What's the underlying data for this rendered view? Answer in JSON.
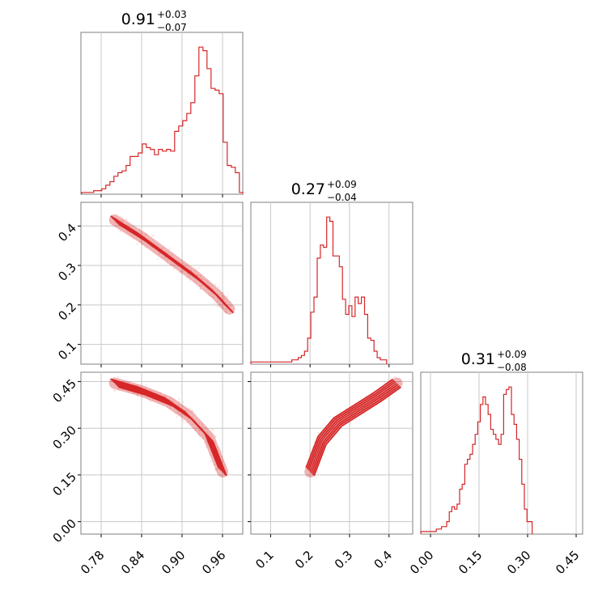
{
  "colors": {
    "series": "#d62728",
    "grid": "#c8c8c8",
    "frame": "#7f7f7f"
  },
  "chart_data": [
    {
      "type": "histogram",
      "panel": "1-1",
      "title": {
        "value": "0.91",
        "plus": "+0.03",
        "minus": "−0.07"
      },
      "xlim": [
        0.75,
        0.99
      ],
      "xticks": [
        "0.78",
        "0.84",
        "0.90",
        "0.96"
      ],
      "bins": {
        "start": 0.751,
        "width": 0.006
      },
      "counts": [
        1,
        1,
        1,
        2,
        2,
        3,
        5,
        7,
        10,
        12,
        13,
        16,
        21,
        21,
        23,
        28,
        26,
        25,
        22,
        25,
        24,
        25,
        24,
        35,
        38,
        41,
        45,
        51,
        66,
        82,
        80,
        70,
        59,
        58,
        56,
        29,
        16,
        15,
        12,
        1
      ]
    },
    {
      "type": "histogram",
      "panel": "2-2",
      "title": {
        "value": "0.27",
        "plus": "+0.09",
        "minus": "−0.04"
      },
      "xlim": [
        0.05,
        0.46
      ],
      "xticks": [
        "0.1",
        "0.2",
        "0.3",
        "0.4"
      ],
      "bins": {
        "start": 0.05,
        "width": 0.008
      },
      "counts": [
        1,
        1,
        1,
        1,
        1,
        1,
        1,
        1,
        1,
        1,
        1,
        1,
        1,
        2,
        2,
        3,
        4,
        6,
        12,
        24,
        31,
        49,
        55,
        54,
        68,
        66,
        50,
        50,
        45,
        30,
        23,
        27,
        22,
        31,
        28,
        31,
        23,
        12,
        11,
        6,
        3,
        2,
        2
      ]
    },
    {
      "type": "histogram",
      "panel": "3-3",
      "title": {
        "value": "0.31",
        "plus": "+0.09",
        "minus": "−0.08"
      },
      "xlim": [
        -0.03,
        0.47
      ],
      "xticks": [
        "0.00",
        "0.15",
        "0.30",
        "0.45"
      ],
      "bins": {
        "start": -0.03,
        "width": 0.008
      },
      "counts": [
        1,
        1,
        1,
        1,
        1,
        1,
        2,
        2,
        3,
        3,
        5,
        9,
        11,
        10,
        12,
        18,
        20,
        28,
        30,
        32,
        36,
        40,
        45,
        52,
        55,
        52,
        48,
        42,
        40,
        38,
        36,
        40,
        56,
        58,
        59,
        48,
        44,
        38,
        30,
        20,
        10,
        5,
        5
      ]
    },
    {
      "type": "scatter-contour",
      "panel": "2-1",
      "xlim": [
        0.75,
        0.99
      ],
      "ylim": [
        0.05,
        0.46
      ],
      "yticks": [
        "0.1",
        "0.2",
        "0.3",
        "0.4"
      ],
      "ridge": [
        [
          0.8,
          0.415
        ],
        [
          0.84,
          0.372
        ],
        [
          0.88,
          0.322
        ],
        [
          0.92,
          0.272
        ],
        [
          0.95,
          0.228
        ],
        [
          0.97,
          0.19
        ]
      ]
    },
    {
      "type": "scatter-contour",
      "panel": "3-1",
      "xlim": [
        0.75,
        0.99
      ],
      "ylim": [
        -0.04,
        0.48
      ],
      "yticks": [
        "0.00",
        "0.15",
        "0.30",
        "0.45"
      ],
      "ridge": [
        [
          0.8,
          0.445
        ],
        [
          0.84,
          0.42
        ],
        [
          0.88,
          0.385
        ],
        [
          0.91,
          0.34
        ],
        [
          0.94,
          0.27
        ],
        [
          0.96,
          0.16
        ]
      ]
    },
    {
      "type": "scatter-contour",
      "panel": "3-2",
      "xlim": [
        0.05,
        0.46
      ],
      "ylim": [
        -0.04,
        0.48
      ],
      "ridge": [
        [
          0.2,
          0.16
        ],
        [
          0.23,
          0.26
        ],
        [
          0.27,
          0.32
        ],
        [
          0.32,
          0.36
        ],
        [
          0.37,
          0.4
        ],
        [
          0.42,
          0.445
        ]
      ]
    }
  ]
}
